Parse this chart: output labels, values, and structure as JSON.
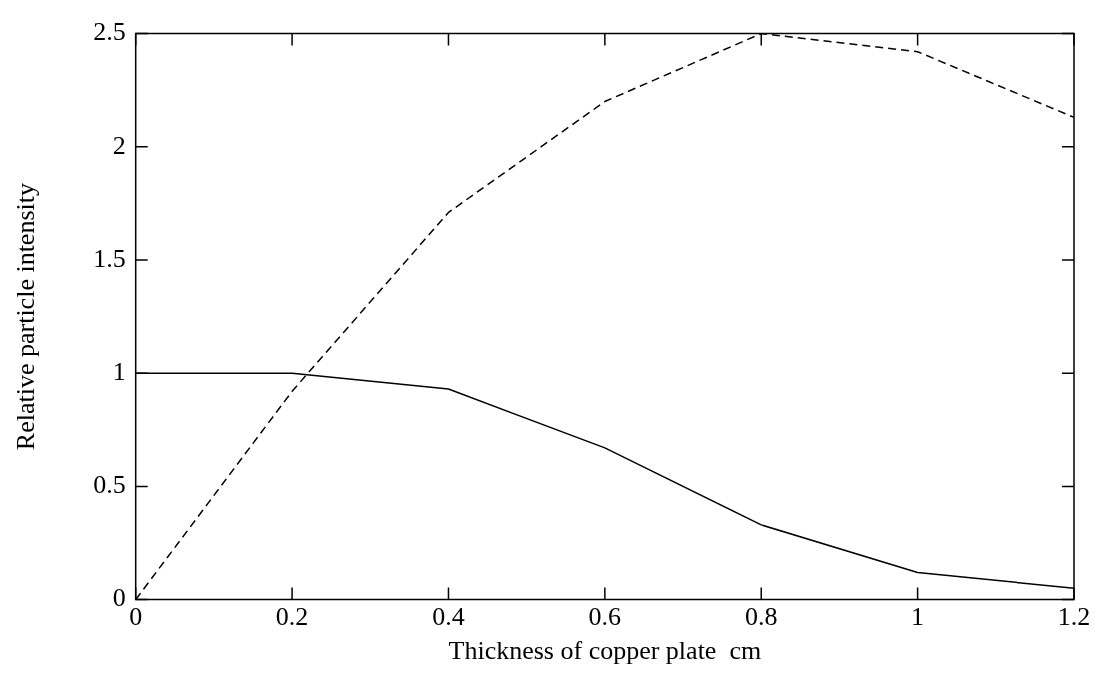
{
  "chart_data": {
    "type": "line",
    "xlabel": "Thickness of copper plate  cm",
    "ylabel": "Relative particle intensity",
    "x": [
      0,
      0.2,
      0.4,
      0.6,
      0.8,
      1.0,
      1.2
    ],
    "series": [
      {
        "color": "#000000",
        "line_style": "solid",
        "values": [
          1.0,
          1.0,
          0.93,
          0.67,
          0.33,
          0.12,
          0.05
        ]
      },
      {
        "color": "#000000",
        "line_style": "dashed",
        "values": [
          0.0,
          0.92,
          1.71,
          2.2,
          2.5,
          2.42,
          2.13
        ]
      }
    ],
    "xlim": [
      0,
      1.2
    ],
    "xticks": [
      0,
      0.2,
      0.4,
      0.6,
      0.8,
      1,
      1.2
    ],
    "ylim": [
      0,
      2.5
    ],
    "yticks": [
      0,
      0.5,
      1,
      1.5,
      2,
      2.5
    ],
    "grid": false,
    "legend": false,
    "marker": "none"
  }
}
